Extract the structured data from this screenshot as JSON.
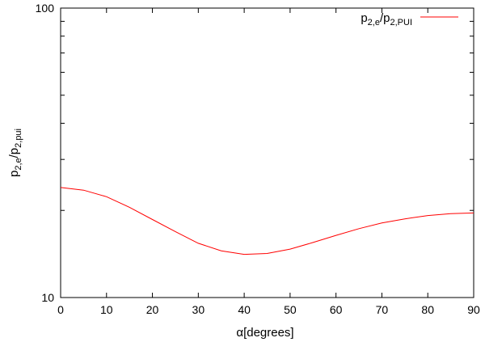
{
  "chart_data": {
    "type": "line",
    "xlabel_greek": "α",
    "xlabel_text": "[degrees]",
    "ylabel": {
      "base1": "p",
      "sub1": "2,e",
      "sep": "/",
      "base2": "p",
      "sub2": "2,pui"
    },
    "xlim": [
      0,
      90
    ],
    "ylim": [
      10,
      100
    ],
    "y_scale": "log",
    "x_ticks": [
      0,
      10,
      20,
      30,
      40,
      50,
      60,
      70,
      80,
      90
    ],
    "y_tick_labels": [
      "10",
      "100"
    ],
    "grid": false,
    "legend_position": "top-right",
    "series": [
      {
        "name": {
          "base1": "p",
          "sub1": "2,e",
          "sep": "/",
          "base2": "p",
          "sub2": "2,PUI"
        },
        "color": "#ff0000",
        "x": [
          0,
          5,
          10,
          15,
          20,
          25,
          30,
          35,
          40,
          45,
          50,
          55,
          60,
          65,
          70,
          75,
          80,
          85,
          90
        ],
        "y": [
          24.0,
          23.5,
          22.3,
          20.5,
          18.6,
          16.9,
          15.4,
          14.5,
          14.1,
          14.2,
          14.7,
          15.5,
          16.4,
          17.3,
          18.1,
          18.7,
          19.2,
          19.5,
          19.6
        ]
      }
    ]
  }
}
